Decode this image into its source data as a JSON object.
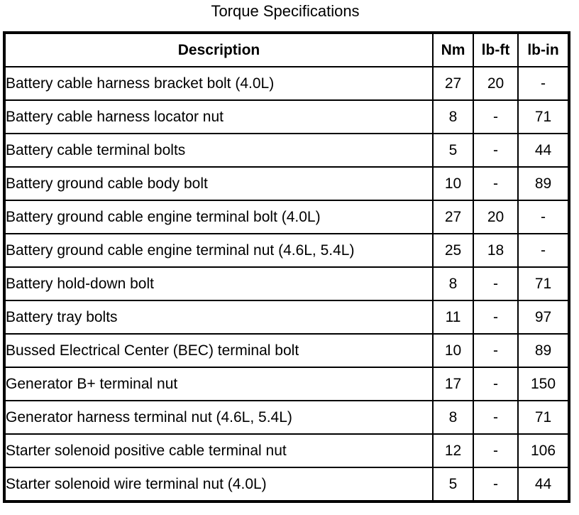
{
  "title": "Torque Specifications",
  "table": {
    "columns": {
      "description": "Description",
      "nm": "Nm",
      "lbft": "lb-ft",
      "lbin": "lb-in"
    },
    "rows": [
      {
        "description": "Battery cable harness bracket bolt (4.0L)",
        "nm": "27",
        "lbft": "20",
        "lbin": "-"
      },
      {
        "description": "Battery cable harness locator nut",
        "nm": "8",
        "lbft": "-",
        "lbin": "71"
      },
      {
        "description": "Battery cable terminal bolts",
        "nm": "5",
        "lbft": "-",
        "lbin": "44"
      },
      {
        "description": "Battery ground cable body bolt",
        "nm": "10",
        "lbft": "-",
        "lbin": "89"
      },
      {
        "description": "Battery ground cable engine terminal bolt (4.0L)",
        "nm": "27",
        "lbft": "20",
        "lbin": "-"
      },
      {
        "description": "Battery ground cable engine terminal nut (4.6L, 5.4L)",
        "nm": "25",
        "lbft": "18",
        "lbin": "-"
      },
      {
        "description": "Battery hold-down bolt",
        "nm": "8",
        "lbft": "-",
        "lbin": "71"
      },
      {
        "description": "Battery tray bolts",
        "nm": "11",
        "lbft": "-",
        "lbin": "97"
      },
      {
        "description": "Bussed Electrical Center (BEC) terminal bolt",
        "nm": "10",
        "lbft": "-",
        "lbin": "89"
      },
      {
        "description": "Generator B+ terminal nut",
        "nm": "17",
        "lbft": "-",
        "lbin": "150"
      },
      {
        "description": "Generator harness terminal nut (4.6L, 5.4L)",
        "nm": "8",
        "lbft": "-",
        "lbin": "71"
      },
      {
        "description": "Starter solenoid positive cable terminal nut",
        "nm": "12",
        "lbft": "-",
        "lbin": "106"
      },
      {
        "description": "Starter solenoid wire terminal nut (4.0L)",
        "nm": "5",
        "lbft": "-",
        "lbin": "44"
      }
    ]
  }
}
